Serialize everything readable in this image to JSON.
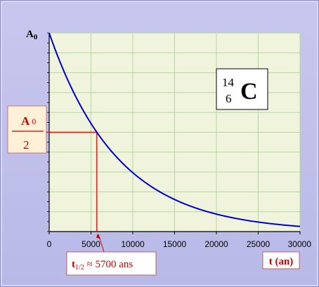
{
  "chart_data": {
    "type": "line",
    "x_unit_label": "t (an)",
    "y_label": {
      "base": "A",
      "sub": "0"
    },
    "xlim": [
      0,
      30000
    ],
    "x_ticks": [
      0,
      5000,
      10000,
      15000,
      20000,
      25000,
      30000
    ],
    "x_tick_labels": [
      "0",
      "5000",
      "10000",
      "15000",
      "20000",
      "25000",
      "30000"
    ],
    "ylim": [
      0,
      1
    ],
    "grid": true,
    "series": [
      {
        "formula": "A0 * 2^(-t / 5700)",
        "x": [
          0,
          2500,
          5000,
          5700,
          7500,
          10000,
          12500,
          15000,
          17500,
          20000,
          22500,
          25000,
          27500,
          30000
        ],
        "y": [
          1.0,
          0.738,
          0.544,
          0.5,
          0.402,
          0.297,
          0.219,
          0.161,
          0.119,
          0.088,
          0.065,
          0.048,
          0.035,
          0.026
        ],
        "color": "#0000cc"
      }
    ],
    "annotations": {
      "half_label_num": {
        "base": "A",
        "sub": "0"
      },
      "half_label_den": "2",
      "half_life_text": "t",
      "half_life_sub": "1/2",
      "half_life_value": " ≈ 5700 ans",
      "half_life_x": 5700,
      "half_level_y": 0.5,
      "marker_color": "#ff0000"
    },
    "isotope": {
      "mass": "14",
      "atomic": "6",
      "symbol": "C"
    }
  },
  "colors": {
    "plot_bg": "#f1f4dd",
    "grid": "#b5d6a0",
    "frame_bg": "#c2c2ec",
    "label_box_bg": "#fff0d8",
    "label_box_border": "#c06060"
  }
}
